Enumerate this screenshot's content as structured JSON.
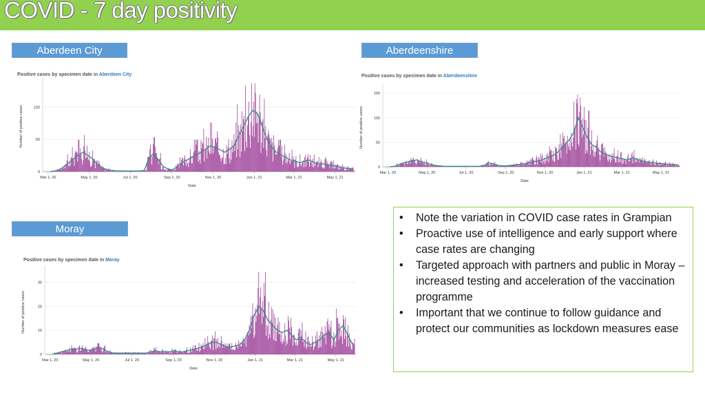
{
  "page": {
    "title": "COVID - 7 day positivity",
    "colors": {
      "title_bar": "#92d050",
      "label_box": "#5b9bd5",
      "bars": "#9b3d96",
      "rolling_line": "#3a8a8a",
      "notes_border": "#92d050"
    }
  },
  "labels": {
    "aberdeen_city": "Aberdeen City",
    "aberdeenshire": "Aberdeenshire",
    "moray": "Moray"
  },
  "notes": [
    "Note the variation in COVID case rates in Grampian",
    "Proactive use of intelligence and early support where case rates are changing",
    "Targeted approach with partners and public in Moray – increased testing and acceleration of the vaccination programme",
    "Important that we continue to follow guidance and protect our communities as lockdown measures ease"
  ],
  "chart_data": [
    {
      "type": "bar",
      "title_prefix": "Positive cases by specimen date in ",
      "title_area": "Aberdeen City",
      "xlabel": "Date",
      "ylabel": "Number of positive cases",
      "ylim": [
        0,
        140
      ],
      "yticks": [
        0,
        50,
        100
      ],
      "x_ticks": [
        "Mar 1, 20",
        "May 1, 20",
        "Jul 1, 20",
        "Sep 1, 20",
        "Nov 1, 20",
        "Jan 1, 21",
        "Mar 1, 21",
        "May 1, 21"
      ],
      "grid": true,
      "rolling_average_shown": true,
      "series": [
        {
          "name": "",
          "weekly_x": [
            "2020-03-01",
            "2020-03-08",
            "2020-03-15",
            "2020-03-22",
            "2020-03-29",
            "2020-04-05",
            "2020-04-12",
            "2020-04-19",
            "2020-04-26",
            "2020-05-03",
            "2020-05-10",
            "2020-05-17",
            "2020-05-24",
            "2020-05-31",
            "2020-06-07",
            "2020-06-14",
            "2020-06-21",
            "2020-06-28",
            "2020-07-05",
            "2020-07-12",
            "2020-07-19",
            "2020-07-26",
            "2020-08-02",
            "2020-08-09",
            "2020-08-16",
            "2020-08-23",
            "2020-08-30",
            "2020-09-06",
            "2020-09-13",
            "2020-09-20",
            "2020-09-27",
            "2020-10-04",
            "2020-10-11",
            "2020-10-18",
            "2020-10-25",
            "2020-11-01",
            "2020-11-08",
            "2020-11-15",
            "2020-11-22",
            "2020-11-29",
            "2020-12-06",
            "2020-12-13",
            "2020-12-20",
            "2020-12-27",
            "2021-01-03",
            "2021-01-10",
            "2021-01-17",
            "2021-01-24",
            "2021-01-31",
            "2021-02-07",
            "2021-02-14",
            "2021-02-21",
            "2021-02-28",
            "2021-03-07",
            "2021-03-14",
            "2021-03-21",
            "2021-03-28",
            "2021-04-04",
            "2021-04-11",
            "2021-04-18",
            "2021-04-25",
            "2021-05-02",
            "2021-05-09",
            "2021-05-16",
            "2021-05-23"
          ],
          "values": [
            0,
            1,
            3,
            8,
            14,
            20,
            26,
            30,
            25,
            20,
            12,
            6,
            3,
            2,
            1,
            1,
            1,
            1,
            1,
            1,
            2,
            22,
            28,
            18,
            8,
            4,
            3,
            8,
            14,
            18,
            22,
            26,
            30,
            35,
            40,
            38,
            34,
            30,
            34,
            40,
            55,
            70,
            85,
            95,
            90,
            70,
            50,
            38,
            30,
            26,
            22,
            18,
            16,
            14,
            16,
            18,
            14,
            12,
            12,
            10,
            9,
            8,
            6,
            5,
            4
          ]
        }
      ]
    },
    {
      "type": "bar",
      "title_prefix": "Positive cases by specimen date in ",
      "title_area": "Aberdeenshire",
      "xlabel": "Date",
      "ylabel": "Number of positive cases",
      "ylim": [
        0,
        160
      ],
      "yticks": [
        0,
        50,
        100,
        150
      ],
      "x_ticks": [
        "Mar 1, 20",
        "May 1, 20",
        "Jul 1, 20",
        "Sep 1, 20",
        "Nov 1, 20",
        "Jan 1, 21",
        "Mar 1, 21",
        "May 1, 21"
      ],
      "grid": true,
      "rolling_average_shown": true,
      "series": [
        {
          "name": "",
          "weekly_x": [
            "2020-03-01",
            "2020-03-08",
            "2020-03-15",
            "2020-03-22",
            "2020-03-29",
            "2020-04-05",
            "2020-04-12",
            "2020-04-19",
            "2020-04-26",
            "2020-05-03",
            "2020-05-10",
            "2020-05-17",
            "2020-05-24",
            "2020-05-31",
            "2020-06-07",
            "2020-06-14",
            "2020-06-21",
            "2020-06-28",
            "2020-07-05",
            "2020-07-12",
            "2020-07-19",
            "2020-07-26",
            "2020-08-02",
            "2020-08-09",
            "2020-08-16",
            "2020-08-23",
            "2020-08-30",
            "2020-09-06",
            "2020-09-13",
            "2020-09-20",
            "2020-09-27",
            "2020-10-04",
            "2020-10-11",
            "2020-10-18",
            "2020-10-25",
            "2020-11-01",
            "2020-11-08",
            "2020-11-15",
            "2020-11-22",
            "2020-11-29",
            "2020-12-06",
            "2020-12-13",
            "2020-12-20",
            "2020-12-27",
            "2021-01-03",
            "2021-01-10",
            "2021-01-17",
            "2021-01-24",
            "2021-01-31",
            "2021-02-07",
            "2021-02-14",
            "2021-02-21",
            "2021-02-28",
            "2021-03-07",
            "2021-03-14",
            "2021-03-21",
            "2021-03-28",
            "2021-04-04",
            "2021-04-11",
            "2021-04-18",
            "2021-04-25",
            "2021-05-02",
            "2021-05-09",
            "2021-05-16",
            "2021-05-23"
          ],
          "values": [
            0,
            1,
            4,
            8,
            10,
            12,
            14,
            10,
            8,
            5,
            3,
            2,
            1,
            1,
            1,
            1,
            1,
            1,
            1,
            1,
            1,
            3,
            8,
            6,
            3,
            2,
            2,
            3,
            4,
            5,
            6,
            8,
            10,
            12,
            14,
            18,
            22,
            26,
            35,
            45,
            55,
            70,
            100,
            80,
            60,
            45,
            40,
            30,
            26,
            22,
            20,
            18,
            16,
            14,
            18,
            16,
            12,
            10,
            9,
            8,
            7,
            6,
            5,
            5,
            4
          ]
        }
      ]
    },
    {
      "type": "bar",
      "title_prefix": "Positive cases by specimen date in ",
      "title_area": "Moray",
      "xlabel": "Date",
      "ylabel": "Number of positive cases",
      "ylim": [
        0,
        35
      ],
      "yticks": [
        0,
        10,
        20,
        30
      ],
      "x_ticks": [
        "Mar 1, 20",
        "May 1, 20",
        "Jul 1, 20",
        "Sep 1, 20",
        "Nov 1, 20",
        "Jan 1, 21",
        "Mar 1, 21",
        "May 1, 21"
      ],
      "grid": true,
      "rolling_average_shown": true,
      "series": [
        {
          "name": "",
          "weekly_x": [
            "2020-03-01",
            "2020-03-08",
            "2020-03-15",
            "2020-03-22",
            "2020-03-29",
            "2020-04-05",
            "2020-04-12",
            "2020-04-19",
            "2020-04-26",
            "2020-05-03",
            "2020-05-10",
            "2020-05-17",
            "2020-05-24",
            "2020-05-31",
            "2020-06-07",
            "2020-06-14",
            "2020-06-21",
            "2020-06-28",
            "2020-07-05",
            "2020-07-12",
            "2020-07-19",
            "2020-07-26",
            "2020-08-02",
            "2020-08-09",
            "2020-08-16",
            "2020-08-23",
            "2020-08-30",
            "2020-09-06",
            "2020-09-13",
            "2020-09-20",
            "2020-09-27",
            "2020-10-04",
            "2020-10-11",
            "2020-10-18",
            "2020-10-25",
            "2020-11-01",
            "2020-11-08",
            "2020-11-15",
            "2020-11-22",
            "2020-11-29",
            "2020-12-06",
            "2020-12-13",
            "2020-12-20",
            "2020-12-27",
            "2021-01-03",
            "2021-01-10",
            "2021-01-17",
            "2021-01-24",
            "2021-01-31",
            "2021-02-07",
            "2021-02-14",
            "2021-02-21",
            "2021-02-28",
            "2021-03-07",
            "2021-03-14",
            "2021-03-21",
            "2021-03-28",
            "2021-04-04",
            "2021-04-11",
            "2021-04-18",
            "2021-04-25",
            "2021-05-02",
            "2021-05-09",
            "2021-05-16",
            "2021-05-23"
          ],
          "values": [
            0,
            0.5,
            1,
            1.5,
            2,
            2,
            2.5,
            2,
            1.5,
            2,
            3,
            2,
            1,
            0.5,
            0.5,
            0.5,
            0.5,
            0.5,
            0.5,
            0.5,
            0.5,
            1,
            1.5,
            1,
            1,
            1,
            1.5,
            1,
            1,
            1.5,
            2,
            2.5,
            3,
            4,
            5,
            5,
            4,
            3,
            3,
            3.5,
            4,
            6,
            10,
            16,
            20,
            18,
            14,
            12,
            10,
            9,
            10,
            8,
            6,
            7,
            5,
            4,
            5,
            6,
            8,
            9,
            6,
            10,
            12,
            8,
            4
          ]
        }
      ]
    }
  ]
}
